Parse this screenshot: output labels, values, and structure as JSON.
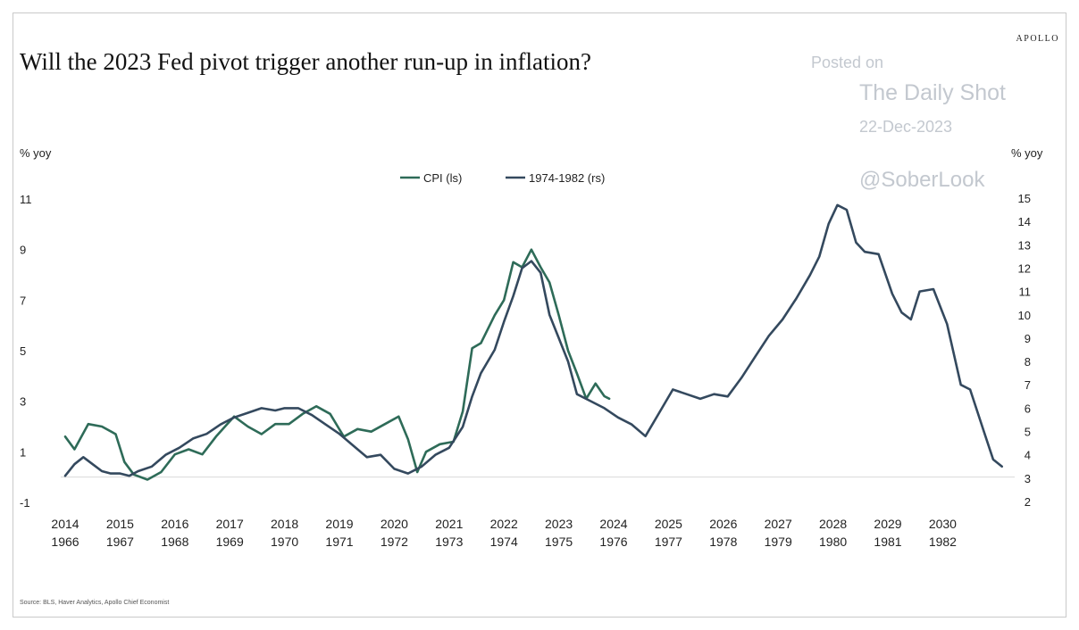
{
  "brand": "APOLLO",
  "watermark": {
    "line1": "Posted on",
    "line2": "The Daily Shot",
    "line3": "22-Dec-2023",
    "line4": "@SoberLook"
  },
  "source": "Source: BLS, Haver Analytics, Apollo Chief Economist",
  "colors": {
    "cpi": "#2e6b58",
    "hist": "#34495e",
    "zero_line": "#d9d9d9"
  },
  "chart_data": {
    "type": "line",
    "title": "Will the 2023 Fed pivot trigger another run-up in inflation?",
    "ylabel_left": "% yoy",
    "ylabel_right": "% yoy",
    "ylim_left": [
      -1,
      11
    ],
    "ylim_right": [
      2,
      15
    ],
    "yticks_left": [
      11,
      9,
      7,
      5,
      3,
      1,
      -1
    ],
    "yticks_right": [
      15,
      14,
      13,
      12,
      11,
      10,
      9,
      8,
      7,
      6,
      5,
      4,
      3,
      2
    ],
    "x_ticks_top": [
      "2014",
      "2015",
      "2016",
      "2017",
      "2018",
      "2019",
      "2020",
      "2021",
      "2022",
      "2023",
      "2024",
      "2025",
      "2026",
      "2027",
      "2028",
      "2029",
      "2030"
    ],
    "x_ticks_bottom": [
      "1966",
      "1967",
      "1968",
      "1969",
      "1970",
      "1971",
      "1972",
      "1973",
      "1974",
      "1975",
      "1976",
      "1977",
      "1978",
      "1979",
      "1980",
      "1981",
      "1982"
    ],
    "grid": false,
    "legend_position": "top-center",
    "series": [
      {
        "name": "CPI (ls)",
        "axis": "left",
        "x": [
          2014.0,
          2014.17,
          2014.42,
          2014.67,
          2014.92,
          2015.08,
          2015.25,
          2015.5,
          2015.75,
          2016.0,
          2016.25,
          2016.5,
          2016.75,
          2017.08,
          2017.33,
          2017.58,
          2017.83,
          2018.08,
          2018.33,
          2018.58,
          2018.83,
          2019.08,
          2019.33,
          2019.58,
          2019.83,
          2020.08,
          2020.25,
          2020.42,
          2020.58,
          2020.83,
          2021.08,
          2021.25,
          2021.42,
          2021.58,
          2021.83,
          2022.0,
          2022.17,
          2022.33,
          2022.5,
          2022.67,
          2022.83,
          2023.0,
          2023.17,
          2023.33,
          2023.5,
          2023.67,
          2023.83,
          2023.92
        ],
        "y": [
          1.6,
          1.1,
          2.1,
          2.0,
          1.7,
          0.6,
          0.1,
          -0.1,
          0.2,
          0.9,
          1.1,
          0.9,
          1.6,
          2.4,
          2.0,
          1.7,
          2.1,
          2.1,
          2.5,
          2.8,
          2.5,
          1.6,
          1.9,
          1.8,
          2.1,
          2.4,
          1.5,
          0.2,
          1.0,
          1.3,
          1.4,
          2.6,
          5.1,
          5.3,
          6.4,
          7.0,
          8.5,
          8.3,
          9.0,
          8.3,
          7.7,
          6.4,
          5.0,
          4.1,
          3.1,
          3.7,
          3.2,
          3.1
        ]
      },
      {
        "name": "1974-1982 (rs)",
        "axis": "right",
        "x": [
          2014.0,
          2014.17,
          2014.33,
          2014.5,
          2014.67,
          2014.83,
          2015.0,
          2015.17,
          2015.33,
          2015.58,
          2015.83,
          2016.08,
          2016.33,
          2016.58,
          2016.83,
          2017.08,
          2017.33,
          2017.58,
          2017.83,
          2018.0,
          2018.25,
          2018.5,
          2018.75,
          2019.0,
          2019.25,
          2019.5,
          2019.75,
          2020.0,
          2020.25,
          2020.5,
          2020.75,
          2021.0,
          2021.25,
          2021.42,
          2021.58,
          2021.83,
          2022.0,
          2022.17,
          2022.33,
          2022.5,
          2022.67,
          2022.83,
          2023.0,
          2023.17,
          2023.33,
          2023.58,
          2023.83,
          2024.08,
          2024.33,
          2024.58,
          2024.83,
          2025.08,
          2025.33,
          2025.58,
          2025.83,
          2026.08,
          2026.33,
          2026.58,
          2026.83,
          2027.08,
          2027.33,
          2027.58,
          2027.75,
          2027.92,
          2028.08,
          2028.25,
          2028.42,
          2028.58,
          2028.83,
          2029.08,
          2029.25,
          2029.42,
          2029.58,
          2029.83,
          2030.08,
          2030.33,
          2030.5,
          2030.75,
          2030.92,
          2031.08
        ],
        "y": [
          3.1,
          3.6,
          3.9,
          3.6,
          3.3,
          3.2,
          3.2,
          3.1,
          3.3,
          3.5,
          4.0,
          4.3,
          4.7,
          4.9,
          5.3,
          5.6,
          5.8,
          6.0,
          5.9,
          6.0,
          6.0,
          5.7,
          5.3,
          4.9,
          4.4,
          3.9,
          4.0,
          3.4,
          3.2,
          3.5,
          4.0,
          4.3,
          5.2,
          6.5,
          7.5,
          8.5,
          9.7,
          10.8,
          12.0,
          12.3,
          11.8,
          10.0,
          9.0,
          8.0,
          6.6,
          6.3,
          6.0,
          5.6,
          5.3,
          4.8,
          5.8,
          6.8,
          6.6,
          6.4,
          6.6,
          6.5,
          7.3,
          8.2,
          9.1,
          9.8,
          10.7,
          11.7,
          12.5,
          13.9,
          14.7,
          14.5,
          13.1,
          12.7,
          12.6,
          10.9,
          10.1,
          9.8,
          11.0,
          11.1,
          9.6,
          7.0,
          6.8,
          5.0,
          3.8,
          3.5
        ]
      }
    ]
  }
}
